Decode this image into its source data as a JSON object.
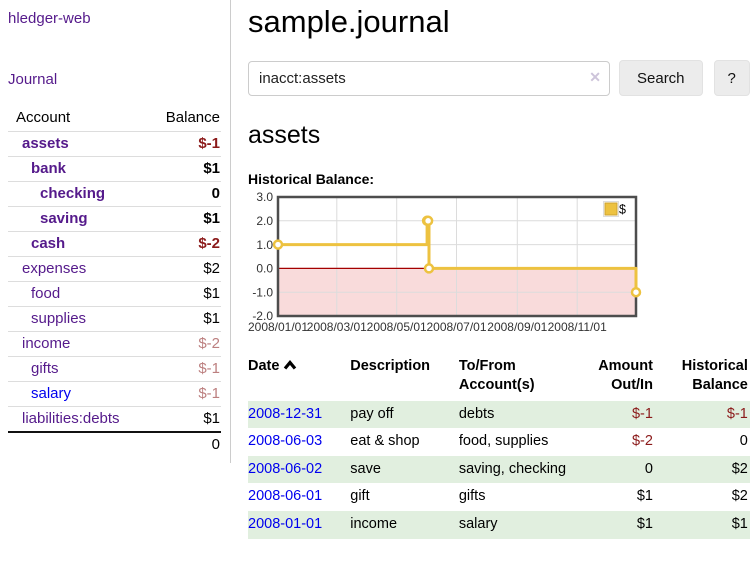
{
  "sidebar": {
    "app_title": "hledger-web",
    "journal_label": "Journal",
    "accounts_header": "Account",
    "balance_header": "Balance",
    "accounts": [
      {
        "name": "assets",
        "level": 0,
        "bold": true,
        "balance": "$-1",
        "balance_style": "neg-strong"
      },
      {
        "name": "bank",
        "level": 1,
        "bold": true,
        "balance": "$1",
        "balance_style": "pos"
      },
      {
        "name": "checking",
        "level": 2,
        "bold": true,
        "balance": "0",
        "balance_style": "pos"
      },
      {
        "name": "saving",
        "level": 2,
        "bold": true,
        "balance": "$1",
        "balance_style": "pos"
      },
      {
        "name": "cash",
        "level": 1,
        "bold": true,
        "balance": "$-2",
        "balance_style": "neg-strong"
      },
      {
        "name": "expenses",
        "level": 0,
        "bold": false,
        "balance": "$2",
        "balance_style": "pos"
      },
      {
        "name": "food",
        "level": 1,
        "bold": false,
        "balance": "$1",
        "balance_style": "pos"
      },
      {
        "name": "supplies",
        "level": 1,
        "bold": false,
        "balance": "$1",
        "balance_style": "pos"
      },
      {
        "name": "income",
        "level": 0,
        "bold": false,
        "balance": "$-2",
        "balance_style": "neg-soft"
      },
      {
        "name": "gifts",
        "level": 1,
        "bold": false,
        "balance": "$-1",
        "balance_style": "neg-soft"
      },
      {
        "name": "salary",
        "level": 1,
        "bold": false,
        "balance": "$-1",
        "balance_style": "neg-soft",
        "blue": true
      },
      {
        "name": "liabilities:debts",
        "level": 0,
        "bold": false,
        "balance": "$1",
        "balance_style": "pos"
      }
    ],
    "total": "0"
  },
  "main": {
    "title": "sample.journal",
    "search": {
      "value": "inacct:assets",
      "clear_icon": "✕",
      "button_label": "Search",
      "help_label": "?"
    },
    "account_heading": "assets"
  },
  "chart_data": {
    "type": "line",
    "title": "Historical Balance:",
    "steps": true,
    "series": [
      {
        "name": "$",
        "color": "#edc240",
        "points": [
          [
            "2008-01-01",
            1
          ],
          [
            "2008-06-01",
            2
          ],
          [
            "2008-06-02",
            2
          ],
          [
            "2008-06-03",
            0
          ],
          [
            "2008-12-31",
            -1
          ]
        ]
      }
    ],
    "x_range": [
      "2008-01-01",
      "2008-12-31"
    ],
    "x_tick_labels": [
      "2008/01/01",
      "2008/03/01",
      "2008/05/01",
      "2008/07/01",
      "2008/09/01",
      "2008/11/01"
    ],
    "y_ticks": [
      3,
      2,
      1,
      0,
      -1,
      -2
    ],
    "y_tick_labels": [
      "3.0",
      "2.0",
      "1.0",
      "0.0",
      "-1.0",
      "-2.0"
    ],
    "ylim": [
      -2,
      3
    ],
    "legend": {
      "label": "$",
      "position": "top-right"
    },
    "grid": true,
    "negative_region": true
  },
  "register": {
    "headers": [
      {
        "label": "Date",
        "align": "left",
        "sortable": true,
        "sorted": "asc"
      },
      {
        "label": "Description",
        "align": "left"
      },
      {
        "label": "To/From Account(s)",
        "align": "left"
      },
      {
        "label": "Amount Out/In",
        "align": "right"
      },
      {
        "label": "Historical Balance",
        "align": "right"
      }
    ],
    "rows": [
      {
        "date": "2008-12-31",
        "description": "pay off",
        "accounts": "debts",
        "amount": "$-1",
        "amount_neg": true,
        "balance": "$-1",
        "balance_neg": true,
        "shaded": true
      },
      {
        "date": "2008-06-03",
        "description": "eat & shop",
        "accounts": "food, supplies",
        "amount": "$-2",
        "amount_neg": true,
        "balance": "0",
        "balance_neg": false,
        "shaded": false
      },
      {
        "date": "2008-06-02",
        "description": "save",
        "accounts": "saving, checking",
        "amount": "0",
        "amount_neg": false,
        "balance": "$2",
        "balance_neg": false,
        "shaded": true
      },
      {
        "date": "2008-06-01",
        "description": "gift",
        "accounts": "gifts",
        "amount": "$1",
        "amount_neg": false,
        "balance": "$2",
        "balance_neg": false,
        "shaded": false
      },
      {
        "date": "2008-01-01",
        "description": "income",
        "accounts": "salary",
        "amount": "$1",
        "amount_neg": false,
        "balance": "$1",
        "balance_neg": false,
        "shaded": true
      }
    ]
  },
  "colors": {
    "link_purple": "#551a8b",
    "link_blue": "#0000ee",
    "negative_strong": "#8b1a1a",
    "negative_soft": "#bc7f7f",
    "row_green": "#e1efdf",
    "chart_line": "#edc240",
    "chart_negative_fill": "#f9dbdb",
    "chart_zero_line": "#a40000",
    "chart_grid": "#dcdcdc",
    "chart_border": "#4d4d4d"
  }
}
